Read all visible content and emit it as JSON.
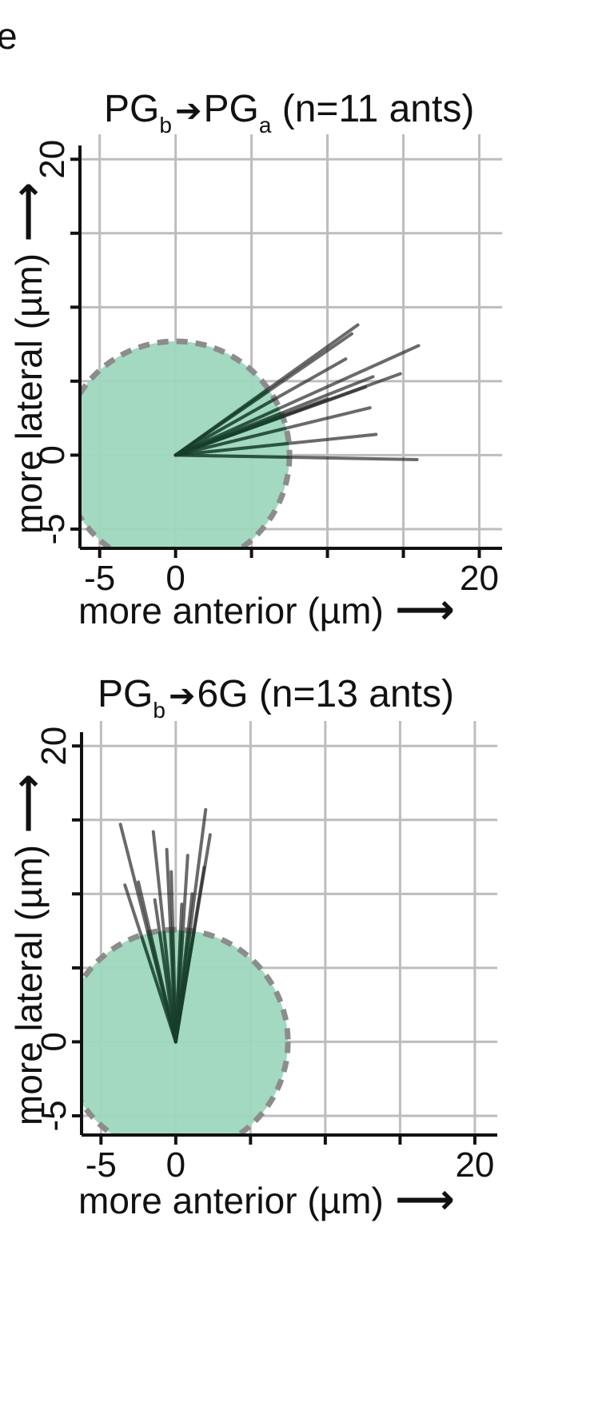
{
  "figure": {
    "panel_letter": "e"
  },
  "colors": {
    "cell_fill": "#9dd7bd",
    "cell_border": "#8c8c8c",
    "grid": "#bdbdbd",
    "axis": "#111111",
    "vector": "#2b2b2b",
    "vector_inside": "#0d4a2a"
  },
  "chart_data": [
    {
      "type": "scatter",
      "title": {
        "prefix": "PG",
        "prefix_sub": "b",
        "arrow": "➔",
        "target": "PG",
        "target_sub": "a",
        "suffix": " (n=11 ants)"
      },
      "xlabel": "more anterior (µm)",
      "ylabel": "more lateral (µm)",
      "x_arrow": "⟶",
      "y_arrow": "⟶",
      "xlim": [
        -6.3,
        21.5
      ],
      "ylim": [
        -6.3,
        20.5
      ],
      "x_gridlines": [
        -5,
        0,
        5,
        10,
        15,
        20
      ],
      "y_gridlines": [
        -5,
        0,
        5,
        10,
        15,
        20
      ],
      "x_tick_labels": [
        {
          "value": -5,
          "label": "-5"
        },
        {
          "value": 0,
          "label": "0"
        },
        {
          "value": 20,
          "label": "20"
        }
      ],
      "y_tick_labels": [
        {
          "value": -5,
          "label": "-5"
        },
        {
          "value": 0,
          "label": "0"
        },
        {
          "value": 20,
          "label": "20"
        }
      ],
      "cell": {
        "center": [
          0,
          0
        ],
        "radius": 7.5
      },
      "vectors": [
        {
          "x": 12.0,
          "y": 8.8
        },
        {
          "x": 11.6,
          "y": 8.2
        },
        {
          "x": 16.0,
          "y": 7.4
        },
        {
          "x": 13.0,
          "y": 5.3
        },
        {
          "x": 14.8,
          "y": 5.5
        },
        {
          "x": 12.5,
          "y": 4.6
        },
        {
          "x": 12.8,
          "y": 3.2
        },
        {
          "x": 13.2,
          "y": 1.4
        },
        {
          "x": 15.9,
          "y": -0.3
        },
        {
          "x": 10.0,
          "y": 3.8
        },
        {
          "x": 11.2,
          "y": 6.5
        }
      ]
    },
    {
      "type": "scatter",
      "title": {
        "prefix": "PG",
        "prefix_sub": "b",
        "arrow": "➔",
        "target": "6G",
        "target_sub": "",
        "suffix": "  (n=13 ants)"
      },
      "xlabel": "more anterior (µm)",
      "ylabel": "more lateral (µm)",
      "x_arrow": "⟶",
      "y_arrow": "⟶",
      "xlim": [
        -6.3,
        21.5
      ],
      "ylim": [
        -6.3,
        20.5
      ],
      "x_gridlines": [
        -5,
        0,
        5,
        10,
        15,
        20
      ],
      "y_gridlines": [
        -5,
        0,
        5,
        10,
        15,
        20
      ],
      "x_tick_labels": [
        {
          "value": -5,
          "label": "-5"
        },
        {
          "value": 0,
          "label": "0"
        },
        {
          "value": 20,
          "label": "20"
        }
      ],
      "y_tick_labels": [
        {
          "value": -5,
          "label": "-5"
        },
        {
          "value": 0,
          "label": "0"
        },
        {
          "value": 20,
          "label": "20"
        }
      ],
      "cell": {
        "center": [
          0,
          0
        ],
        "radius": 7.5
      },
      "vectors": [
        {
          "x": -3.7,
          "y": 14.7
        },
        {
          "x": -3.4,
          "y": 10.6
        },
        {
          "x": -1.5,
          "y": 14.2
        },
        {
          "x": -2.5,
          "y": 10.8
        },
        {
          "x": -0.6,
          "y": 13.0
        },
        {
          "x": -0.3,
          "y": 11.5
        },
        {
          "x": 0.8,
          "y": 12.6
        },
        {
          "x": 2.0,
          "y": 15.7
        },
        {
          "x": 2.3,
          "y": 14.0
        },
        {
          "x": 1.9,
          "y": 11.8
        },
        {
          "x": -1.4,
          "y": 9.6
        },
        {
          "x": 0.4,
          "y": 9.3
        },
        {
          "x": 1.1,
          "y": 10.0
        }
      ]
    }
  ]
}
